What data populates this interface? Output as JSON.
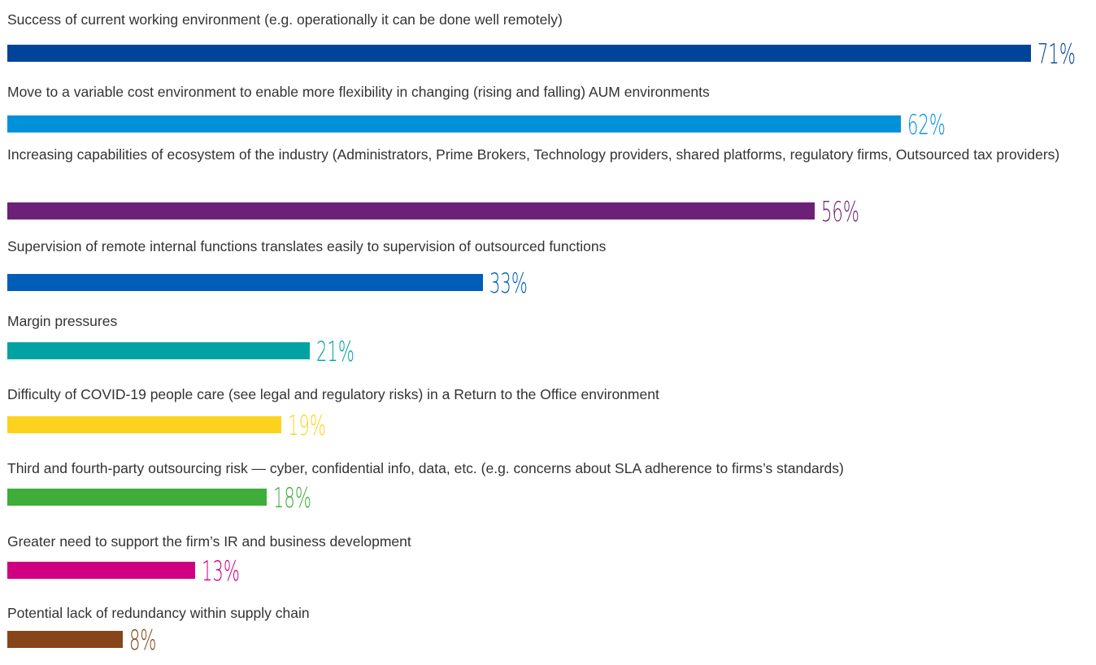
{
  "chart_data": {
    "type": "bar",
    "orientation": "horizontal",
    "categories": [
      "Success of current working environment (e.g. operationally it can be done well remotely)",
      "Move to a variable cost environment to enable more flexibility in changing (rising and falling) AUM environments",
      "Increasing capabilities of ecosystem of the industry (Administrators, Prime Brokers, Technology providers, shared platforms, regulatory firms, Outsourced tax providers)",
      "Supervision of remote internal functions translates easily to supervision of outsourced functions",
      "Margin pressures",
      "Difficulty of COVID-19 people care (see legal and regulatory risks) in a Return to the Office environment",
      "Third and fourth-party outsourcing risk — cyber, confidential info, data, etc. (e.g. concerns about SLA adherence to firms’s standards)",
      "Greater need to support the firm’s IR and business development",
      "Potential lack of redundancy within supply chain"
    ],
    "values": [
      71,
      62,
      56,
      33,
      21,
      19,
      18,
      13,
      8
    ],
    "value_labels": [
      "71%",
      "62%",
      "56%",
      "33%",
      "21%",
      "19%",
      "18%",
      "13%",
      "8%"
    ],
    "colors": [
      "#00449a",
      "#0091da",
      "#6d2077",
      "#005eb8",
      "#00a3a1",
      "#fdd21f",
      "#3fad3a",
      "#d10082",
      "#86461a"
    ]
  }
}
